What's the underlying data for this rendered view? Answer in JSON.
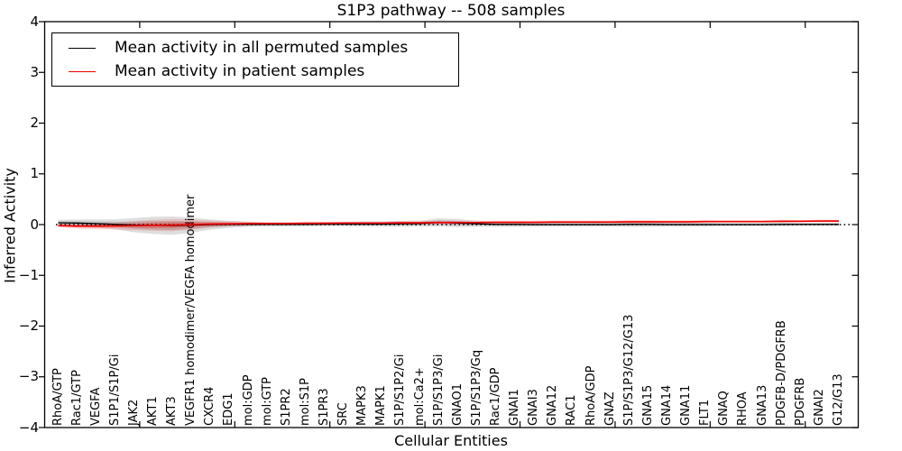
{
  "figure": {
    "title": "S1P3 pathway -- 508 samples",
    "xlabel": "Cellular Entities",
    "ylabel": "Inferred Activity"
  },
  "legend": {
    "items": [
      {
        "label": "Mean activity in all permuted samples",
        "color": "#000000"
      },
      {
        "label": "Mean activity in patient samples",
        "color": "#ee0000"
      }
    ]
  },
  "chart_data": {
    "type": "line",
    "title": "S1P3 pathway -- 508 samples",
    "xlabel": "Cellular Entities",
    "ylabel": "Inferred Activity",
    "ylim": [
      -4,
      4
    ],
    "yticks": [
      -4,
      -3,
      -2,
      -1,
      0,
      1,
      2,
      3,
      4
    ],
    "grid": false,
    "legend_position": "upper left",
    "zero_line": {
      "y": 0,
      "style": "dotted",
      "color": "#000000"
    },
    "categories": [
      "RhoA/GTP",
      "Rac1/GTP",
      "VEGFA",
      "S1P1/S1P/Gi",
      "JAK2",
      "AKT1",
      "AKT3",
      "VEGFR1 homodimer/VEGFA homodimer",
      "CXCR4",
      "EDG1",
      "mol:GDP",
      "mol:GTP",
      "S1PR2",
      "mol:S1P",
      "S1PR3",
      "SRC",
      "MAPK3",
      "MAPK1",
      "S1P/S1P2/Gi",
      "mol:Ca2+",
      "S1P/S1P3/Gi",
      "GNAO1",
      "S1P/S1P3/Gq",
      "Rac1/GDP",
      "GNAI1",
      "GNAI3",
      "GNA12",
      "RAC1",
      "RhoA/GDP",
      "GNAZ",
      "S1P/S1P3/G12/G13",
      "GNA15",
      "GNA14",
      "GNA11",
      "FLT1",
      "GNAQ",
      "RHOA",
      "GNA13",
      "PDGFB-D/PDGFRB",
      "PDGFRB",
      "GNAI2",
      "G12/G13"
    ],
    "series": [
      {
        "name": "Mean activity in all permuted samples",
        "color": "#000000",
        "band_fill_outer": "rgba(0,0,0,0.13)",
        "band_fill_inner": "rgba(0,0,0,0.15)",
        "values": [
          0.035,
          0.03,
          0.02,
          0.005,
          -0.01,
          -0.015,
          -0.02,
          -0.01,
          0.0,
          0.005,
          0.005,
          0.005,
          0.005,
          0.005,
          0.01,
          0.01,
          0.01,
          0.01,
          0.015,
          0.02,
          0.045,
          0.03,
          0.015,
          0.005,
          0.005,
          0.0,
          0.0,
          0.0,
          0.0,
          0.0,
          0.005,
          0.005,
          0.0,
          0.0,
          0.0,
          0.0,
          0.0,
          0.0,
          0.005,
          0.005,
          0.005,
          0.005
        ],
        "band_halfwidth": [
          0.06,
          0.07,
          0.08,
          0.1,
          0.14,
          0.17,
          0.18,
          0.15,
          0.1,
          0.07,
          0.05,
          0.04,
          0.04,
          0.04,
          0.04,
          0.04,
          0.05,
          0.05,
          0.06,
          0.06,
          0.08,
          0.08,
          0.06,
          0.05,
          0.05,
          0.04,
          0.04,
          0.04,
          0.04,
          0.04,
          0.05,
          0.05,
          0.04,
          0.04,
          0.04,
          0.03,
          0.03,
          0.03,
          0.04,
          0.03,
          0.03,
          0.03
        ]
      },
      {
        "name": "Mean activity in patient samples",
        "color": "#ee0000",
        "band_fill_outer": "rgba(255,0,0,0.14)",
        "band_fill_inner": "rgba(255,0,0,0.25)",
        "values": [
          -0.02,
          -0.03,
          -0.03,
          -0.025,
          -0.02,
          -0.015,
          -0.01,
          0.0,
          0.01,
          0.015,
          0.02,
          0.02,
          0.02,
          0.025,
          0.025,
          0.03,
          0.03,
          0.03,
          0.035,
          0.035,
          0.04,
          0.04,
          0.04,
          0.045,
          0.045,
          0.045,
          0.05,
          0.05,
          0.05,
          0.05,
          0.055,
          0.055,
          0.055,
          0.055,
          0.06,
          0.06,
          0.06,
          0.06,
          0.065,
          0.065,
          0.07,
          0.07
        ],
        "band_halfwidth": [
          0.04,
          0.05,
          0.06,
          0.07,
          0.09,
          0.11,
          0.12,
          0.1,
          0.07,
          0.05,
          0.04,
          0.03,
          0.03,
          0.03,
          0.03,
          0.03,
          0.03,
          0.03,
          0.035,
          0.035,
          0.04,
          0.04,
          0.035,
          0.03,
          0.03,
          0.03,
          0.03,
          0.03,
          0.03,
          0.03,
          0.035,
          0.035,
          0.03,
          0.03,
          0.03,
          0.025,
          0.025,
          0.025,
          0.03,
          0.025,
          0.025,
          0.03
        ]
      }
    ]
  }
}
